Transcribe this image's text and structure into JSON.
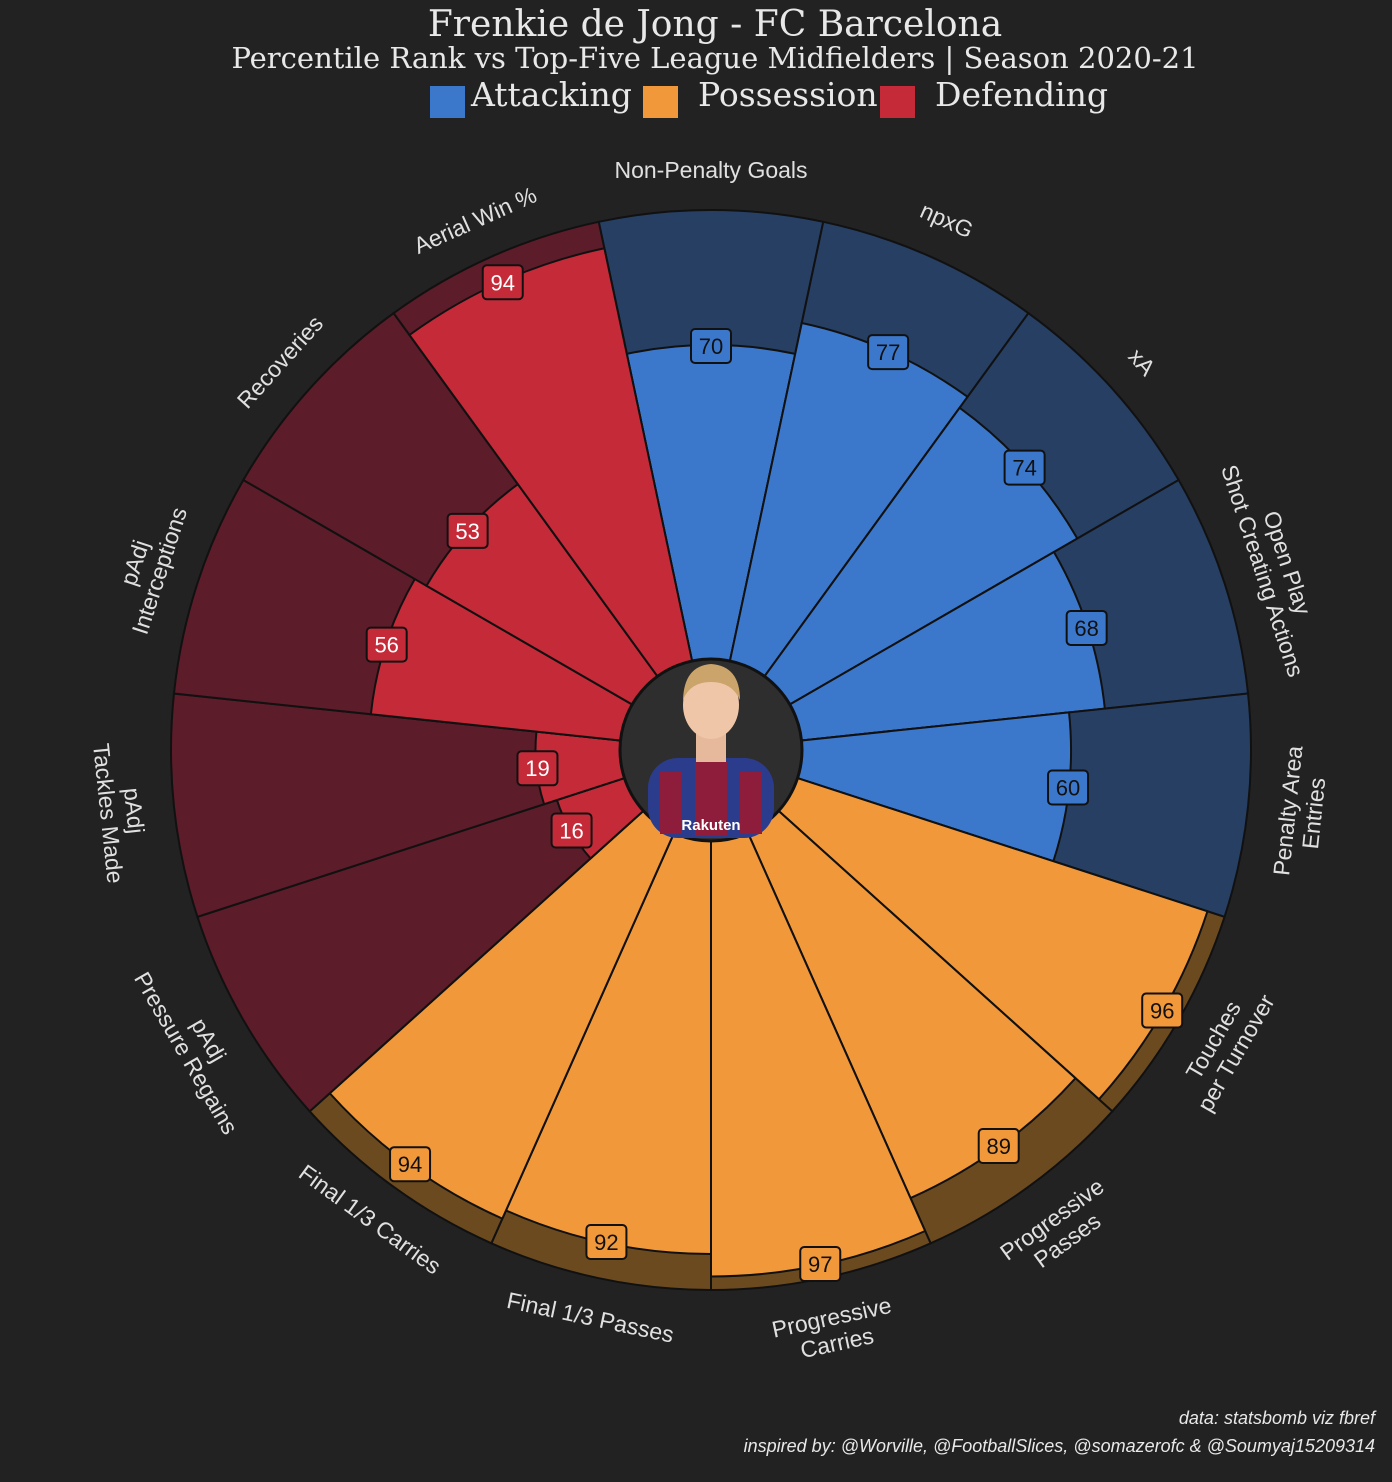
{
  "title": "Frenkie de Jong - FC Barcelona",
  "subtitle": "Percentile Rank vs Top-Five League Midfielders | Season 2020-21",
  "legend": [
    {
      "label": "Attacking",
      "color": "#3b78cc"
    },
    {
      "label": "Possession",
      "color": "#f0983a"
    },
    {
      "label": "Defending",
      "color": "#c42a38"
    }
  ],
  "credits": {
    "data": "data: statsbomb viz fbref",
    "inspired": "inspired by: @Worville, @FootballSlices, @somazerofc & @Soumyaj15209314"
  },
  "chart_data": {
    "type": "pie",
    "description_type": "radial bar (pizza) chart of percentile ranks",
    "rlim": [
      0,
      100
    ],
    "categories": [
      {
        "label": [
          "Non-Penalty Goals"
        ],
        "value": 70,
        "group": "Attacking"
      },
      {
        "label": [
          "npxG"
        ],
        "value": 77,
        "group": "Attacking"
      },
      {
        "label": [
          "xA"
        ],
        "value": 74,
        "group": "Attacking"
      },
      {
        "label": [
          "Open Play",
          "Shot Creating Actions"
        ],
        "value": 68,
        "group": "Attacking"
      },
      {
        "label": [
          "Penalty Area",
          "Entries"
        ],
        "value": 60,
        "group": "Attacking"
      },
      {
        "label": [
          "Touches",
          "per Turnover"
        ],
        "value": 96,
        "group": "Possession"
      },
      {
        "label": [
          "Progressive",
          "Passes"
        ],
        "value": 89,
        "group": "Possession"
      },
      {
        "label": [
          "Progressive",
          "Carries"
        ],
        "value": 97,
        "group": "Possession"
      },
      {
        "label": [
          "Final 1/3 Passes"
        ],
        "value": 92,
        "group": "Possession"
      },
      {
        "label": [
          "Final 1/3 Carries"
        ],
        "value": 94,
        "group": "Possession"
      },
      {
        "label": [
          "pAdj",
          "Pressure Regains"
        ],
        "value": 16,
        "group": "Defending"
      },
      {
        "label": [
          "pAdj",
          "Tackles Made"
        ],
        "value": 19,
        "group": "Defending"
      },
      {
        "label": [
          "pAdj",
          "Interceptions"
        ],
        "value": 56,
        "group": "Defending"
      },
      {
        "label": [
          "Recoveries"
        ],
        "value": 53,
        "group": "Defending"
      },
      {
        "label": [
          "Aerial Win %"
        ],
        "value": 94,
        "group": "Defending"
      }
    ],
    "group_colors": {
      "Attacking": {
        "fill": "#3b78cc",
        "bg": "#263f63",
        "text": "#111111"
      },
      "Possession": {
        "fill": "#f0983a",
        "bg": "#6b4a1f",
        "text": "#111111"
      },
      "Defending": {
        "fill": "#c42a38",
        "bg": "#5c1c29",
        "text": "#ffffff"
      }
    }
  }
}
